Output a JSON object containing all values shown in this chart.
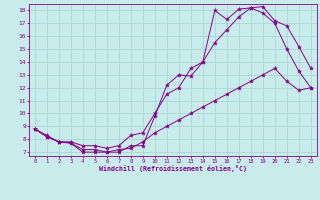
{
  "xlabel": "Windchill (Refroidissement éolien,°C)",
  "bg_color": "#c8ecec",
  "grid_color": "#a8d8d8",
  "line_color": "#880088",
  "xlim": [
    -0.5,
    23.5
  ],
  "ylim": [
    6.7,
    18.5
  ],
  "xticks": [
    0,
    1,
    2,
    3,
    4,
    5,
    6,
    7,
    8,
    9,
    10,
    11,
    12,
    13,
    14,
    15,
    16,
    17,
    18,
    19,
    20,
    21,
    22,
    23
  ],
  "yticks": [
    7,
    8,
    9,
    10,
    11,
    12,
    13,
    14,
    15,
    16,
    17,
    18
  ],
  "line1_x": [
    0,
    1,
    2,
    3,
    4,
    5,
    6,
    7,
    8,
    9,
    10,
    11,
    12,
    13,
    14,
    15,
    16,
    17,
    18,
    19,
    20,
    21,
    22,
    23
  ],
  "line1_y": [
    8.8,
    8.2,
    7.8,
    7.7,
    7.0,
    7.0,
    7.0,
    7.0,
    7.5,
    7.5,
    9.8,
    12.2,
    13.0,
    12.9,
    14.0,
    18.0,
    17.3,
    18.1,
    18.2,
    17.8,
    17.0,
    15.0,
    13.3,
    12.0
  ],
  "line2_x": [
    0,
    1,
    2,
    3,
    4,
    5,
    6,
    7,
    8,
    9,
    10,
    11,
    12,
    13,
    14,
    15,
    16,
    17,
    18,
    19,
    20,
    21,
    22,
    23
  ],
  "line2_y": [
    8.8,
    8.3,
    7.8,
    7.8,
    7.5,
    7.5,
    7.3,
    7.5,
    8.3,
    8.5,
    10.0,
    11.5,
    12.0,
    13.5,
    14.0,
    15.5,
    16.5,
    17.5,
    18.2,
    18.3,
    17.2,
    16.8,
    15.2,
    13.5
  ],
  "line3_x": [
    0,
    1,
    2,
    3,
    4,
    5,
    6,
    7,
    8,
    9,
    10,
    11,
    12,
    13,
    14,
    15,
    16,
    17,
    18,
    19,
    20,
    21,
    22,
    23
  ],
  "line3_y": [
    8.8,
    8.2,
    7.8,
    7.7,
    7.2,
    7.2,
    7.0,
    7.2,
    7.3,
    7.8,
    8.5,
    9.0,
    9.5,
    10.0,
    10.5,
    11.0,
    11.5,
    12.0,
    12.5,
    13.0,
    13.5,
    12.5,
    11.8,
    12.0
  ]
}
